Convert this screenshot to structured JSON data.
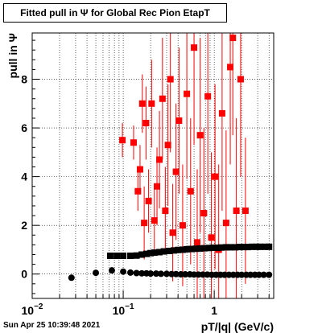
{
  "page": {
    "title": "Fitted pull in  Ψ  for Global Rec Pion EtapT",
    "timestamp": "Sun Apr 25 10:39:48 2021"
  },
  "chart_data": {
    "type": "scatter",
    "title": "Fitted pull in  Ψ  for Global Rec Pion EtapT",
    "xlabel": "pT/|q| (GeV/c)",
    "ylabel": "pull in  Ψ",
    "xscale": "log",
    "xlim": [
      0.01,
      4.5
    ],
    "ylim": [
      -1.0,
      9.9
    ],
    "x_ticks": [
      {
        "value": 0.01,
        "label": "10",
        "exp": "−2"
      },
      {
        "value": 0.1,
        "label": "10",
        "exp": "−1"
      },
      {
        "value": 1,
        "label": "1",
        "exp": ""
      }
    ],
    "y_ticks": [
      0,
      2,
      4,
      6,
      8
    ],
    "grid": true,
    "series": [
      {
        "color": "#ff0000",
        "marker": "square",
        "points": [
          [
            0.098,
            5.5,
            0.7
          ],
          [
            0.13,
            5.4,
            0.7
          ],
          [
            0.145,
            3.4,
            0.8
          ],
          [
            0.153,
            4.3,
            1.0
          ],
          [
            0.162,
            7.0,
            1.2
          ],
          [
            0.17,
            2.1,
            1.5
          ],
          [
            0.178,
            6.2,
            1.5
          ],
          [
            0.19,
            3.0,
            1.3
          ],
          [
            0.205,
            7.0,
            1.8
          ],
          [
            0.22,
            2.2,
            1.4
          ],
          [
            0.235,
            3.6,
            1.6
          ],
          [
            0.25,
            4.7,
            2.0
          ],
          [
            0.27,
            7.2,
            2.5
          ],
          [
            0.29,
            2.6,
            1.8
          ],
          [
            0.31,
            5.3,
            2.5
          ],
          [
            0.33,
            8.0,
            3.0
          ],
          [
            0.35,
            1.7,
            2.0
          ],
          [
            0.38,
            4.2,
            2.8
          ],
          [
            0.41,
            6.3,
            3.0
          ],
          [
            0.45,
            2.0,
            2.5
          ],
          [
            0.5,
            7.4,
            3.5
          ],
          [
            0.55,
            3.4,
            3.0
          ],
          [
            0.6,
            9.3,
            4.0
          ],
          [
            0.65,
            1.3,
            3.0
          ],
          [
            0.7,
            5.7,
            4.0
          ],
          [
            0.77,
            2.5,
            3.5
          ],
          [
            0.85,
            7.3,
            4.0
          ],
          [
            0.93,
            1.5,
            3.5
          ],
          [
            1.02,
            4.0,
            3.8
          ],
          [
            1.12,
            1.0,
            3.5
          ],
          [
            1.22,
            6.6,
            4.0
          ],
          [
            1.35,
            2.1,
            3.8
          ],
          [
            1.5,
            8.5,
            4.0
          ],
          [
            1.6,
            9.7,
            4.0
          ],
          [
            1.75,
            2.6,
            3.8
          ],
          [
            1.95,
            8.0,
            4.0
          ],
          [
            2.2,
            2.6,
            3.0
          ]
        ]
      },
      {
        "color": "#000000",
        "marker": "square",
        "points": [
          [
            0.072,
            0.75
          ],
          [
            0.085,
            0.75
          ],
          [
            0.1,
            0.75
          ],
          [
            0.12,
            0.75
          ],
          [
            0.14,
            0.76
          ],
          [
            0.16,
            0.8
          ],
          [
            0.18,
            0.83
          ],
          [
            0.2,
            0.86
          ],
          [
            0.22,
            0.88
          ],
          [
            0.25,
            0.9
          ],
          [
            0.28,
            0.93
          ],
          [
            0.32,
            0.95
          ],
          [
            0.36,
            0.97
          ],
          [
            0.4,
            0.99
          ],
          [
            0.45,
            1.0
          ],
          [
            0.5,
            1.02
          ],
          [
            0.56,
            1.03
          ],
          [
            0.63,
            1.04
          ],
          [
            0.7,
            1.05
          ],
          [
            0.78,
            1.06
          ],
          [
            0.87,
            1.07
          ],
          [
            0.97,
            1.08
          ],
          [
            1.08,
            1.08
          ],
          [
            1.2,
            1.09
          ],
          [
            1.35,
            1.1
          ],
          [
            1.5,
            1.1
          ],
          [
            1.7,
            1.1
          ],
          [
            1.9,
            1.11
          ],
          [
            2.1,
            1.11
          ],
          [
            2.35,
            1.11
          ],
          [
            2.6,
            1.12
          ],
          [
            2.9,
            1.12
          ],
          [
            3.2,
            1.12
          ],
          [
            3.6,
            1.12
          ],
          [
            4.0,
            1.12
          ]
        ]
      },
      {
        "color": "#000000",
        "marker": "circle",
        "points": [
          [
            0.027,
            -0.15
          ],
          [
            0.05,
            0.05
          ],
          [
            0.075,
            0.15
          ],
          [
            0.1,
            0.1
          ],
          [
            0.12,
            0.06
          ],
          [
            0.14,
            0.04
          ],
          [
            0.16,
            0.03
          ],
          [
            0.18,
            0.03
          ],
          [
            0.2,
            0.02
          ],
          [
            0.23,
            0.02
          ],
          [
            0.26,
            0.01
          ],
          [
            0.3,
            0.01
          ],
          [
            0.34,
            0.0
          ],
          [
            0.38,
            0.0
          ],
          [
            0.43,
            -0.01
          ],
          [
            0.48,
            -0.01
          ],
          [
            0.54,
            -0.01
          ],
          [
            0.6,
            -0.02
          ],
          [
            0.67,
            -0.02
          ],
          [
            0.75,
            -0.02
          ],
          [
            0.84,
            -0.02
          ],
          [
            0.94,
            -0.03
          ],
          [
            1.05,
            -0.03
          ],
          [
            1.17,
            -0.03
          ],
          [
            1.3,
            -0.03
          ],
          [
            1.45,
            -0.03
          ],
          [
            1.62,
            -0.03
          ],
          [
            1.8,
            -0.03
          ],
          [
            2.0,
            -0.03
          ],
          [
            2.25,
            -0.03
          ],
          [
            2.5,
            -0.03
          ],
          [
            2.8,
            -0.03
          ],
          [
            3.1,
            -0.03
          ],
          [
            3.5,
            -0.03
          ],
          [
            4.0,
            -0.03
          ]
        ]
      }
    ]
  }
}
